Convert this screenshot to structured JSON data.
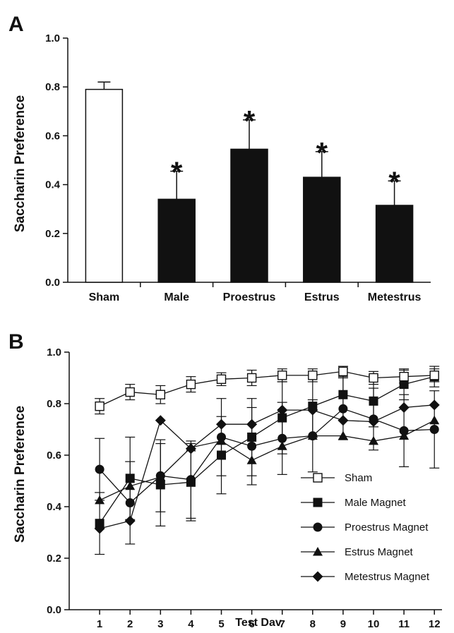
{
  "chart_data": [
    {
      "panel": "A",
      "type": "bar",
      "ylabel": "Saccharin Preference",
      "xlabel": "",
      "ylim": [
        0,
        1.0
      ],
      "yticks": [
        "0.0",
        "0.2",
        "0.4",
        "0.6",
        "0.8",
        "1.0"
      ],
      "categories": [
        "Sham",
        "Male",
        "Proestrus",
        "Estrus",
        "Metestrus"
      ],
      "values": [
        0.79,
        0.34,
        0.545,
        0.43,
        0.315
      ],
      "errors": [
        0.03,
        0.115,
        0.12,
        0.105,
        0.1
      ],
      "fills": [
        "#ffffff",
        "#111111",
        "#111111",
        "#111111",
        "#111111"
      ],
      "significance": [
        "",
        "*",
        "*",
        "*",
        "*"
      ]
    },
    {
      "panel": "B",
      "type": "line",
      "ylabel": "Saccharin Preference",
      "xlabel": "Test Dav",
      "ylim": [
        0,
        1.0
      ],
      "yticks": [
        "0.0",
        "0.2",
        "0.4",
        "0.6",
        "0.8",
        "1.0"
      ],
      "x": [
        1,
        2,
        3,
        4,
        5,
        6,
        7,
        8,
        9,
        10,
        11,
        12
      ],
      "legend_position": "bottom-right",
      "series": [
        {
          "name": "Sham",
          "marker": "open-square",
          "values": [
            0.79,
            0.845,
            0.835,
            0.875,
            0.895,
            0.9,
            0.91,
            0.91,
            0.925,
            0.9,
            0.905,
            0.91
          ],
          "errors": [
            0.03,
            0.03,
            0.035,
            0.03,
            0.025,
            0.03,
            0.025,
            0.025,
            0.02,
            0.025,
            0.025,
            0.025
          ]
        },
        {
          "name": "Male Magnet",
          "marker": "filled-square",
          "values": [
            0.335,
            0.51,
            0.485,
            0.495,
            0.6,
            0.67,
            0.745,
            0.79,
            0.835,
            0.81,
            0.875,
            0.905
          ],
          "errors": [
            0.12,
            0.16,
            0.16,
            0.15,
            0.15,
            0.15,
            0.14,
            0.12,
            0.1,
            0.1,
            0.06,
            0.04
          ]
        },
        {
          "name": "Proestrus Magnet",
          "marker": "filled-circle",
          "values": [
            0.545,
            0.415,
            0.52,
            0.505,
            0.67,
            0.635,
            0.665,
            0.675,
            0.78,
            0.74,
            0.695,
            0.7
          ],
          "errors": [
            0.12,
            0.16,
            0.14,
            0.15,
            0.15,
            0.15,
            0.14,
            0.14,
            0.12,
            0.12,
            0.14,
            0.15
          ]
        },
        {
          "name": "Estrus Magnet",
          "marker": "filled-triangle",
          "values": [
            0.425,
            0.48,
            0.515,
            0.63,
            0.655,
            0.58,
            0.635,
            0.675,
            0.675,
            0.655,
            0.675,
            0.735
          ]
        },
        {
          "name": "Metestrus Magnet",
          "marker": "filled-diamond",
          "values": [
            0.315,
            0.345,
            0.735,
            0.625,
            0.72,
            0.72,
            0.775,
            0.775,
            0.735,
            0.73,
            0.785,
            0.795
          ]
        }
      ]
    }
  ]
}
